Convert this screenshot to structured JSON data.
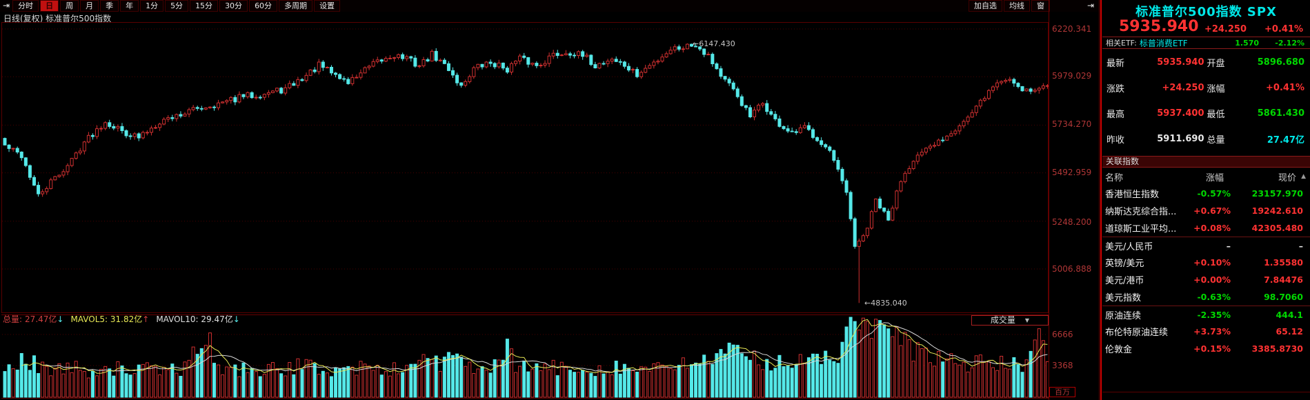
{
  "toolbar": {
    "nav_left_icon": "⇥",
    "items": [
      {
        "label": "分时",
        "active": false
      },
      {
        "label": "日",
        "active": true
      },
      {
        "label": "周",
        "active": false
      },
      {
        "label": "月",
        "active": false
      },
      {
        "label": "季",
        "active": false
      },
      {
        "label": "年",
        "active": false
      },
      {
        "label": "1分",
        "active": false
      },
      {
        "label": "5分",
        "active": false
      },
      {
        "label": "15分",
        "active": false
      },
      {
        "label": "30分",
        "active": false
      },
      {
        "label": "60分",
        "active": false
      },
      {
        "label": "多周期",
        "active": false
      },
      {
        "label": "设置",
        "active": false
      }
    ],
    "right_items": [
      {
        "label": "加自选"
      },
      {
        "label": "均线"
      },
      {
        "label": "窗"
      }
    ],
    "nav_right_icon": "⇥"
  },
  "chart_header": "日线(复权)  标准普尔500指数",
  "price_axis": [
    "6220.341",
    "5979.029",
    "5734.270",
    "5492.959",
    "5248.200",
    "5006.888"
  ],
  "volume_axis": [
    "6666",
    "3368"
  ],
  "volume_unit": "百万",
  "volume_header": {
    "total_label": "总量:",
    "total_value": "27.47亿",
    "total_arrow": "↓",
    "mavol5": "MAVOL5: 31.82亿",
    "mavol5_arrow": "↑",
    "mavol10": "MAVOL10: 29.47亿",
    "mavol10_arrow": "↓",
    "selector_label": "成交量"
  },
  "annotations": {
    "high": "←6147.430",
    "low": "←4835.040"
  },
  "chart_data": {
    "type": "candlestick",
    "symbol": "标准普尔500指数 SPX",
    "period": "日线(复权)",
    "n": 250,
    "price_gridlines": [
      6220.341,
      5979.029,
      5734.27,
      5492.959,
      5248.2,
      5006.888
    ],
    "high_label_value": 6147.43,
    "low_label_value": 4835.04,
    "last_close": 5935.94,
    "close_anchors": [
      [
        0,
        5630
      ],
      [
        4,
        5580
      ],
      [
        8,
        5375
      ],
      [
        11,
        5445
      ],
      [
        15,
        5530
      ],
      [
        19,
        5650
      ],
      [
        24,
        5755
      ],
      [
        28,
        5705
      ],
      [
        32,
        5670
      ],
      [
        37,
        5755
      ],
      [
        42,
        5790
      ],
      [
        47,
        5825
      ],
      [
        52,
        5845
      ],
      [
        57,
        5880
      ],
      [
        62,
        5895
      ],
      [
        67,
        5915
      ],
      [
        72,
        5985
      ],
      [
        75,
        6035
      ],
      [
        78,
        6000
      ],
      [
        82,
        5950
      ],
      [
        85,
        6000
      ],
      [
        89,
        6050
      ],
      [
        93,
        6090
      ],
      [
        96,
        6070
      ],
      [
        99,
        6035
      ],
      [
        102,
        6090
      ],
      [
        106,
        6020
      ],
      [
        109,
        5930
      ],
      [
        112,
        6020
      ],
      [
        116,
        6050
      ],
      [
        120,
        6020
      ],
      [
        123,
        6070
      ],
      [
        127,
        6035
      ],
      [
        131,
        6090
      ],
      [
        135,
        6105
      ],
      [
        139,
        6070
      ],
      [
        141,
        6035
      ],
      [
        145,
        6070
      ],
      [
        148,
        6035
      ],
      [
        151,
        5985
      ],
      [
        155,
        6050
      ],
      [
        159,
        6120
      ],
      [
        165,
        6144
      ],
      [
        168,
        6090
      ],
      [
        171,
        5985
      ],
      [
        175,
        5880
      ],
      [
        178,
        5775
      ],
      [
        181,
        5845
      ],
      [
        184,
        5755
      ],
      [
        188,
        5685
      ],
      [
        191,
        5720
      ],
      [
        194,
        5670
      ],
      [
        197,
        5600
      ],
      [
        201,
        5390
      ],
      [
        203,
        5110
      ],
      [
        206,
        5215
      ],
      [
        208,
        5355
      ],
      [
        211,
        5250
      ],
      [
        214,
        5460
      ],
      [
        217,
        5565
      ],
      [
        221,
        5615
      ],
      [
        224,
        5670
      ],
      [
        227,
        5720
      ],
      [
        231,
        5790
      ],
      [
        234,
        5880
      ],
      [
        237,
        5950
      ],
      [
        240,
        5968
      ],
      [
        243,
        5920
      ],
      [
        246,
        5910
      ],
      [
        249,
        5935.94
      ]
    ],
    "volume_gridlines": [
      6666,
      3368
    ],
    "volume_unit": "百万",
    "volume_total": "27.47亿",
    "mavol5_value": "31.82亿",
    "mavol10_value": "29.47亿",
    "volume_anchors": [
      [
        0,
        3100
      ],
      [
        4,
        3900
      ],
      [
        8,
        3400
      ],
      [
        12,
        2900
      ],
      [
        16,
        3100
      ],
      [
        20,
        2800
      ],
      [
        24,
        3300
      ],
      [
        28,
        2900
      ],
      [
        32,
        3100
      ],
      [
        36,
        2700
      ],
      [
        40,
        3000
      ],
      [
        44,
        3200
      ],
      [
        48,
        7600
      ],
      [
        50,
        3300
      ],
      [
        54,
        2900
      ],
      [
        58,
        3100
      ],
      [
        62,
        2800
      ],
      [
        66,
        3000
      ],
      [
        70,
        3300
      ],
      [
        74,
        3100
      ],
      [
        78,
        2900
      ],
      [
        82,
        3000
      ],
      [
        86,
        3200
      ],
      [
        90,
        2800
      ],
      [
        94,
        3000
      ],
      [
        98,
        3400
      ],
      [
        100,
        4800
      ],
      [
        102,
        4200
      ],
      [
        104,
        3600
      ],
      [
        106,
        4400
      ],
      [
        108,
        3800
      ],
      [
        110,
        3300
      ],
      [
        114,
        3000
      ],
      [
        118,
        3200
      ],
      [
        120,
        5000
      ],
      [
        122,
        3400
      ],
      [
        126,
        3000
      ],
      [
        130,
        3200
      ],
      [
        134,
        2900
      ],
      [
        138,
        3100
      ],
      [
        142,
        3000
      ],
      [
        146,
        3300
      ],
      [
        150,
        2900
      ],
      [
        154,
        3100
      ],
      [
        158,
        3000
      ],
      [
        162,
        3300
      ],
      [
        166,
        4000
      ],
      [
        170,
        4300
      ],
      [
        174,
        4600
      ],
      [
        178,
        4200
      ],
      [
        182,
        3800
      ],
      [
        186,
        4000
      ],
      [
        190,
        3600
      ],
      [
        194,
        3900
      ],
      [
        198,
        4400
      ],
      [
        200,
        5200
      ],
      [
        202,
        7900
      ],
      [
        204,
        8300
      ],
      [
        206,
        7500
      ],
      [
        208,
        6800
      ],
      [
        210,
        7200
      ],
      [
        212,
        6400
      ],
      [
        214,
        5800
      ],
      [
        216,
        5200
      ],
      [
        218,
        4800
      ],
      [
        220,
        4400
      ],
      [
        224,
        4000
      ],
      [
        228,
        3700
      ],
      [
        232,
        3500
      ],
      [
        236,
        3800
      ],
      [
        240,
        3400
      ],
      [
        243,
        3100
      ],
      [
        246,
        7200
      ],
      [
        249,
        3500
      ]
    ]
  },
  "panel": {
    "title": "标准普尔500指数 SPX",
    "price": "5935.940",
    "change": "+24.250",
    "change_pct": "+0.41%",
    "related_etf": {
      "label": "相关ETF:",
      "name": "标普消费ETF",
      "value": "1.570",
      "pct": "-2.12%",
      "color": "green"
    },
    "quote_rows": [
      [
        {
          "label": "最新",
          "value": "5935.940",
          "color": "red"
        },
        {
          "label": "开盘",
          "value": "5896.680",
          "color": "green"
        }
      ],
      [
        {
          "label": "涨跌",
          "value": "+24.250",
          "color": "red"
        },
        {
          "label": "涨幅",
          "value": "+0.41%",
          "color": "red"
        }
      ],
      [
        {
          "label": "最高",
          "value": "5937.400",
          "color": "red"
        },
        {
          "label": "最低",
          "value": "5861.430",
          "color": "green"
        }
      ],
      [
        {
          "label": "昨收",
          "value": "5911.690",
          "color": "white"
        },
        {
          "label": "总量",
          "value": "27.47亿",
          "color": "cyan"
        }
      ]
    ],
    "related_section_title": "关联指数",
    "table_header": [
      "名称",
      "涨幅",
      "现价"
    ],
    "scroll_up_icon": "▲",
    "table_rows": [
      {
        "name": "香港恒生指数",
        "pct": "-0.57%",
        "price": "23157.970",
        "color": "green",
        "sep_before": false
      },
      {
        "name": "纳斯达克综合指...",
        "pct": "+0.67%",
        "price": "19242.610",
        "color": "red",
        "sep_before": false
      },
      {
        "name": "道琼斯工业平均...",
        "pct": "+0.08%",
        "price": "42305.480",
        "color": "red",
        "sep_before": false
      },
      {
        "name": "美元/人民币",
        "pct": "–",
        "price": "–",
        "color": "white",
        "sep_before": true
      },
      {
        "name": "英镑/美元",
        "pct": "+0.10%",
        "price": "1.35580",
        "color": "red",
        "sep_before": false
      },
      {
        "name": "美元/港币",
        "pct": "+0.00%",
        "price": "7.84476",
        "color": "red",
        "sep_before": false
      },
      {
        "name": "美元指数",
        "pct": "-0.63%",
        "price": "98.7060",
        "color": "green",
        "sep_before": false
      },
      {
        "name": "原油连续",
        "pct": "-2.35%",
        "price": "444.1",
        "color": "green",
        "sep_before": true
      },
      {
        "name": "布伦特原油连续",
        "pct": "+3.73%",
        "price": "65.12",
        "color": "red",
        "sep_before": false
      },
      {
        "name": "伦敦金",
        "pct": "+0.15%",
        "price": "3385.8730",
        "color": "red",
        "sep_before": false
      }
    ]
  },
  "colors": {
    "up": "#d03030",
    "down": "#55e8e8",
    "grid": "#4a0000",
    "axis_text": "#b03636",
    "mavol5": "#e8e855",
    "mavol10": "#d8d8d8",
    "red": "#ff3232",
    "green": "#00d800",
    "cyan": "#00e8e8"
  }
}
